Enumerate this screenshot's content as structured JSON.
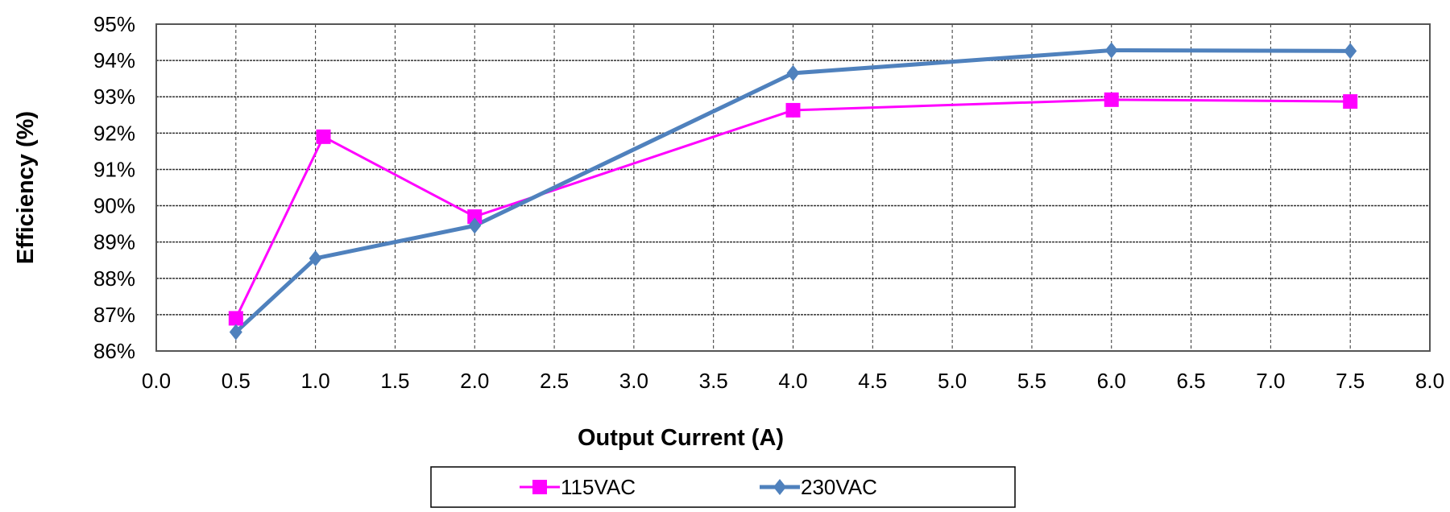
{
  "chart_data": {
    "type": "line",
    "title": "",
    "xlabel": "Output Current (A)",
    "ylabel": "Efficiency (%)",
    "xlim": [
      0,
      8
    ],
    "ylim": [
      86,
      95
    ],
    "x_ticks": [
      "0.0",
      "0.5",
      "1.0",
      "1.5",
      "2.0",
      "2.5",
      "3.0",
      "3.5",
      "4.0",
      "4.5",
      "5.0",
      "5.5",
      "6.0",
      "6.5",
      "7.0",
      "7.5",
      "8.0"
    ],
    "y_ticks": [
      "86%",
      "87%",
      "88%",
      "89%",
      "90%",
      "91%",
      "92%",
      "93%",
      "94%",
      "95%"
    ],
    "grid": true,
    "legend_position": "bottom",
    "series": [
      {
        "name": "115VAC",
        "color": "#FF00FF",
        "marker": "square",
        "x": [
          0.5,
          1.05,
          2.0,
          4.0,
          6.0,
          7.5
        ],
        "y": [
          86.9,
          91.9,
          89.7,
          92.63,
          92.92,
          92.87
        ]
      },
      {
        "name": "230VAC",
        "color": "#4F81BD",
        "marker": "diamond",
        "x": [
          0.5,
          1.0,
          2.0,
          4.0,
          6.0,
          7.5
        ],
        "y": [
          86.52,
          88.55,
          89.45,
          93.65,
          94.28,
          94.26
        ]
      }
    ]
  }
}
